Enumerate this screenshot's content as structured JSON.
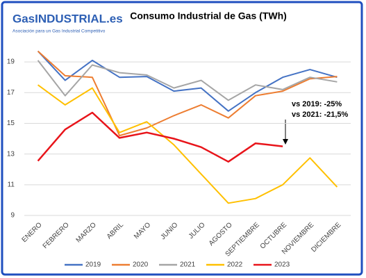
{
  "logo": {
    "name": "GasINDUSTRIAL.es",
    "tagline": "Asociación para un Gas Industrial Competitivo"
  },
  "chart_data": {
    "type": "line",
    "title": "Consumo Industrial de Gas (TWh)",
    "categories": [
      "ENERO",
      "FEBRERO",
      "MARZO",
      "ABRIL",
      "MAYO",
      "JUNIO",
      "JULIO",
      "AGOSTO",
      "SEPTIEMBRE",
      "OCTUBRE",
      "NOVIEMBRE",
      "DICIEMBRE"
    ],
    "series": [
      {
        "name": "2019",
        "color": "#4472c4",
        "values": [
          19.7,
          17.8,
          19.1,
          18.0,
          18.05,
          17.1,
          17.3,
          15.8,
          17.0,
          18.0,
          18.5,
          18.0
        ]
      },
      {
        "name": "2020",
        "color": "#ed7d31",
        "values": [
          19.7,
          18.1,
          18.0,
          14.2,
          14.7,
          15.5,
          16.2,
          15.35,
          16.8,
          17.1,
          17.9,
          18.05
        ]
      },
      {
        "name": "2021",
        "color": "#a5a5a5",
        "values": [
          19.1,
          16.8,
          18.8,
          18.3,
          18.15,
          17.3,
          17.8,
          16.5,
          17.5,
          17.2,
          18.0,
          17.7
        ]
      },
      {
        "name": "2022",
        "color": "#ffc000",
        "values": [
          17.5,
          16.2,
          17.3,
          14.4,
          15.1,
          13.6,
          11.7,
          9.8,
          10.1,
          11.0,
          12.75,
          10.85
        ]
      },
      {
        "name": "2023",
        "color": "#e8141a",
        "values": [
          12.55,
          14.6,
          15.7,
          14.05,
          14.4,
          14.0,
          13.45,
          12.5,
          13.7,
          13.5,
          null,
          null
        ]
      }
    ],
    "ylim": [
      9,
      20
    ],
    "yticks": [
      9,
      11,
      13,
      15,
      17,
      19
    ],
    "grid": true,
    "legend": "bottom",
    "annotations": [
      "vs 2019: -25%",
      "vs 2021: -21,5%"
    ]
  }
}
